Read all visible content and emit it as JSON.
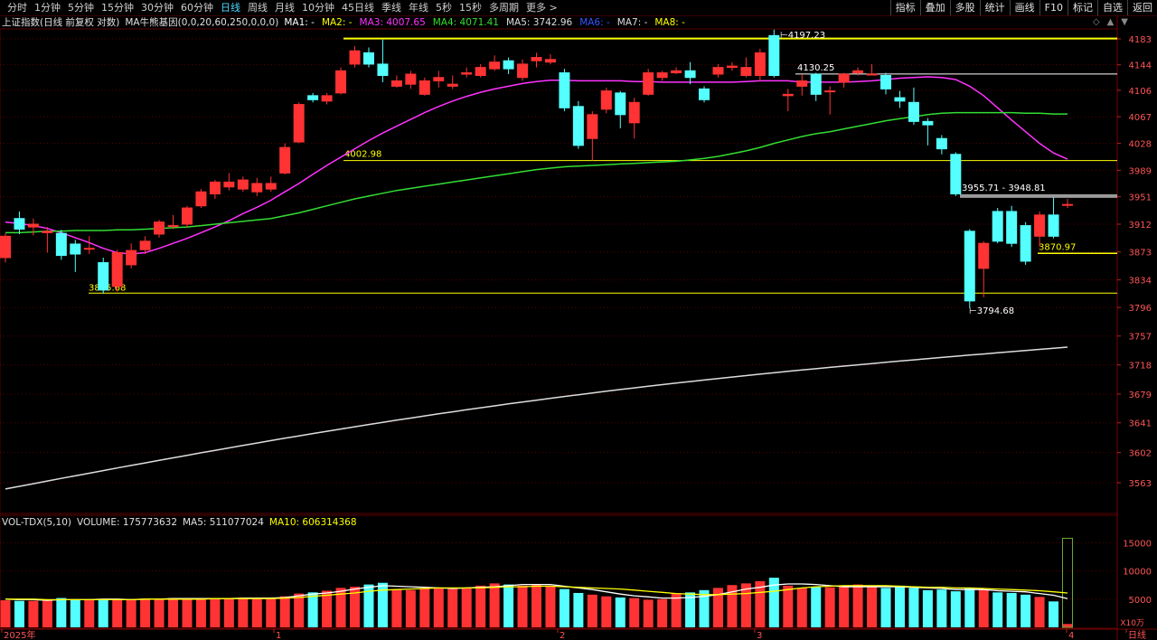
{
  "toolbar": {
    "periods": [
      "分时",
      "1分钟",
      "5分钟",
      "15分钟",
      "30分钟",
      "60分钟",
      "日线",
      "周线",
      "月线",
      "10分钟",
      "45日线",
      "季线",
      "年线",
      "5秒",
      "15秒",
      "多周期",
      "更多 >"
    ],
    "active_period": "日线",
    "right_tools": [
      "指标",
      "叠加",
      "多股",
      "统计",
      "画线",
      "F10",
      "标记",
      "自选",
      "返回"
    ]
  },
  "legend_main": {
    "name": "上证指数(日线 前复权 对数)",
    "indicator": "MA牛熊基因(0,0,20,60,250,0,0,0)",
    "items": [
      {
        "label": "MA1: -",
        "color": "#ffffff"
      },
      {
        "label": "MA2: -",
        "color": "#ffff00"
      },
      {
        "label": "MA3: 4007.65",
        "color": "#ff33ff"
      },
      {
        "label": "MA4: 4071.41",
        "color": "#33dd33"
      },
      {
        "label": "MA5: 3742.96",
        "color": "#dddddd"
      },
      {
        "label": "MA6: -",
        "color": "#3355ff"
      },
      {
        "label": "MA7: -",
        "color": "#dddddd"
      },
      {
        "label": "MA8: -",
        "color": "#ffff00"
      }
    ]
  },
  "legend_vol": {
    "name": "VOL-TDX(5,10)",
    "volume": "VOLUME: 175773632",
    "ma5": "MA5: 511077024",
    "ma10": "MA10: 606314368"
  },
  "window_controls": [
    "◇",
    "▲",
    "▼"
  ],
  "chart_data": {
    "type": "candlestick",
    "price_axis_ticks": [
      "4183",
      "4144",
      "4106",
      "4067",
      "4028",
      "3989",
      "3951",
      "3912",
      "3873",
      "3834",
      "3796",
      "3757",
      "3718",
      "3679",
      "3641",
      "3602",
      "3563"
    ],
    "volume_axis_ticks": [
      "15000",
      "10000",
      "5000"
    ],
    "volume_unit": "X10万",
    "x_labels": [
      "2025年",
      "1",
      "2",
      "3",
      "4",
      "日线"
    ],
    "annotations": {
      "high": "4197.23",
      "level_4130": "4130.25",
      "level_4002": "4002.98",
      "gap_zone": "3955.71 - 3948.81",
      "level_3870": "3870.97",
      "low_left": "3815.68",
      "low": "3794.68"
    },
    "candles": [
      {
        "o": 3865,
        "c": 3895,
        "h": 3899,
        "l": 3858
      },
      {
        "o": 3920,
        "c": 3905,
        "h": 3930,
        "l": 3898
      },
      {
        "o": 3908,
        "c": 3912,
        "h": 3920,
        "l": 3896
      },
      {
        "o": 3900,
        "c": 3902,
        "h": 3908,
        "l": 3872
      },
      {
        "o": 3899,
        "c": 3868,
        "h": 3904,
        "l": 3862
      },
      {
        "o": 3884,
        "c": 3870,
        "h": 3890,
        "l": 3845
      },
      {
        "o": 3878,
        "c": 3878,
        "h": 3895,
        "l": 3870
      },
      {
        "o": 3858,
        "c": 3820,
        "h": 3865,
        "l": 3815
      },
      {
        "o": 3825,
        "c": 3872,
        "h": 3876,
        "l": 3818
      },
      {
        "o": 3855,
        "c": 3875,
        "h": 3885,
        "l": 3850
      },
      {
        "o": 3876,
        "c": 3888,
        "h": 3895,
        "l": 3870
      },
      {
        "o": 3898,
        "c": 3915,
        "h": 3918,
        "l": 3893
      },
      {
        "o": 3910,
        "c": 3910,
        "h": 3925,
        "l": 3905
      },
      {
        "o": 3912,
        "c": 3935,
        "h": 3938,
        "l": 3908
      },
      {
        "o": 3938,
        "c": 3958,
        "h": 3962,
        "l": 3935
      },
      {
        "o": 3955,
        "c": 3972,
        "h": 3975,
        "l": 3948
      },
      {
        "o": 3965,
        "c": 3972,
        "h": 3985,
        "l": 3960
      },
      {
        "o": 3962,
        "c": 3975,
        "h": 3980,
        "l": 3958
      },
      {
        "o": 3958,
        "c": 3970,
        "h": 3978,
        "l": 3952
      },
      {
        "o": 3962,
        "c": 3970,
        "h": 3980,
        "l": 3958
      },
      {
        "o": 3985,
        "c": 4022,
        "h": 4028,
        "l": 3983
      },
      {
        "o": 4030,
        "c": 4085,
        "h": 4088,
        "l": 4028
      },
      {
        "o": 4098,
        "c": 4092,
        "h": 4102,
        "l": 4088
      },
      {
        "o": 4090,
        "c": 4098,
        "h": 4102,
        "l": 4085
      },
      {
        "o": 4102,
        "c": 4135,
        "h": 4140,
        "l": 4100
      },
      {
        "o": 4145,
        "c": 4165,
        "h": 4172,
        "l": 4140
      },
      {
        "o": 4162,
        "c": 4145,
        "h": 4170,
        "l": 4140
      },
      {
        "o": 4145,
        "c": 4128,
        "h": 4182,
        "l": 4118
      },
      {
        "o": 4112,
        "c": 4120,
        "h": 4128,
        "l": 4110
      },
      {
        "o": 4115,
        "c": 4130,
        "h": 4135,
        "l": 4108
      },
      {
        "o": 4100,
        "c": 4120,
        "h": 4125,
        "l": 4098
      },
      {
        "o": 4120,
        "c": 4125,
        "h": 4135,
        "l": 4110
      },
      {
        "o": 4112,
        "c": 4115,
        "h": 4128,
        "l": 4108
      },
      {
        "o": 4130,
        "c": 4132,
        "h": 4140,
        "l": 4125
      },
      {
        "o": 4128,
        "c": 4140,
        "h": 4145,
        "l": 4125
      },
      {
        "o": 4138,
        "c": 4148,
        "h": 4158,
        "l": 4135
      },
      {
        "o": 4150,
        "c": 4138,
        "h": 4155,
        "l": 4130
      },
      {
        "o": 4125,
        "c": 4145,
        "h": 4152,
        "l": 4120
      },
      {
        "o": 4150,
        "c": 4155,
        "h": 4162,
        "l": 4140
      },
      {
        "o": 4148,
        "c": 4152,
        "h": 4160,
        "l": 4145
      },
      {
        "o": 4132,
        "c": 4080,
        "h": 4138,
        "l": 4075
      },
      {
        "o": 4082,
        "c": 4025,
        "h": 4090,
        "l": 4020
      },
      {
        "o": 4035,
        "c": 4070,
        "h": 4075,
        "l": 4003
      },
      {
        "o": 4078,
        "c": 4105,
        "h": 4110,
        "l": 4072
      },
      {
        "o": 4102,
        "c": 4070,
        "h": 4105,
        "l": 4050
      },
      {
        "o": 4058,
        "c": 4088,
        "h": 4095,
        "l": 4035
      },
      {
        "o": 4100,
        "c": 4132,
        "h": 4138,
        "l": 4098
      },
      {
        "o": 4125,
        "c": 4132,
        "h": 4135,
        "l": 4120
      },
      {
        "o": 4132,
        "c": 4135,
        "h": 4140,
        "l": 4130
      },
      {
        "o": 4135,
        "c": 4125,
        "h": 4148,
        "l": 4115
      },
      {
        "o": 4108,
        "c": 4092,
        "h": 4112,
        "l": 4088
      },
      {
        "o": 4130,
        "c": 4140,
        "h": 4145,
        "l": 4125
      },
      {
        "o": 4140,
        "c": 4142,
        "h": 4148,
        "l": 4135
      },
      {
        "o": 4128,
        "c": 4140,
        "h": 4155,
        "l": 4125
      },
      {
        "o": 4128,
        "c": 4162,
        "h": 4168,
        "l": 4120
      },
      {
        "o": 4188,
        "c": 4128,
        "h": 4197,
        "l": 4125
      },
      {
        "o": 4098,
        "c": 4100,
        "h": 4108,
        "l": 4075
      },
      {
        "o": 4112,
        "c": 4120,
        "h": 4130,
        "l": 4098
      },
      {
        "o": 4130,
        "c": 4100,
        "h": 4132,
        "l": 4090
      },
      {
        "o": 4105,
        "c": 4105,
        "h": 4112,
        "l": 4070
      },
      {
        "o": 4118,
        "c": 4130,
        "h": 4132,
        "l": 4110
      },
      {
        "o": 4132,
        "c": 4135,
        "h": 4140,
        "l": 4128
      },
      {
        "o": 4130,
        "c": 4130,
        "h": 4145,
        "l": 4128
      },
      {
        "o": 4128,
        "c": 4108,
        "h": 4132,
        "l": 4100
      },
      {
        "o": 4095,
        "c": 4090,
        "h": 4105,
        "l": 4080
      },
      {
        "o": 4088,
        "c": 4060,
        "h": 4110,
        "l": 4055
      },
      {
        "o": 4060,
        "c": 4055,
        "h": 4065,
        "l": 4025
      },
      {
        "o": 4035,
        "c": 4020,
        "h": 4040,
        "l": 4012
      },
      {
        "o": 4012,
        "c": 3955,
        "h": 4015,
        "l": 3952
      },
      {
        "o": 3902,
        "c": 3805,
        "h": 3905,
        "l": 3795
      },
      {
        "o": 3850,
        "c": 3885,
        "h": 3888,
        "l": 3810
      },
      {
        "o": 3930,
        "c": 3888,
        "h": 3935,
        "l": 3885
      },
      {
        "o": 3930,
        "c": 3885,
        "h": 3938,
        "l": 3880
      },
      {
        "o": 3910,
        "c": 3860,
        "h": 3915,
        "l": 3855
      },
      {
        "o": 3895,
        "c": 3925,
        "h": 3930,
        "l": 3880
      },
      {
        "o": 3925,
        "c": 3895,
        "h": 3950,
        "l": 3892
      },
      {
        "o": 3940,
        "c": 3940,
        "h": 3948,
        "l": 3935
      }
    ],
    "ma20": [
      3915,
      3913,
      3910,
      3906,
      3900,
      3893,
      3886,
      3878,
      3872,
      3870,
      3872,
      3878,
      3885,
      3892,
      3900,
      3908,
      3917,
      3927,
      3936,
      3946,
      3958,
      3970,
      3983,
      3996,
      4008,
      4020,
      4032,
      4043,
      4053,
      4063,
      4073,
      4082,
      4090,
      4097,
      4103,
      4108,
      4112,
      4116,
      4119,
      4121,
      4121,
      4120,
      4120,
      4120,
      4120,
      4119,
      4119,
      4118,
      4118,
      4118,
      4118,
      4118,
      4118,
      4119,
      4120,
      4120,
      4120,
      4118,
      4118,
      4118,
      4118,
      4119,
      4120,
      4122,
      4124,
      4125,
      4126,
      4125,
      4122,
      4112,
      4098,
      4080,
      4062,
      4045,
      4028,
      4014,
      4005
    ],
    "ma60": [
      3900,
      3900,
      3901,
      3902,
      3902,
      3903,
      3903,
      3903,
      3904,
      3904,
      3905,
      3906,
      3907,
      3908,
      3910,
      3912,
      3914,
      3916,
      3918,
      3920,
      3924,
      3928,
      3933,
      3938,
      3943,
      3948,
      3952,
      3956,
      3960,
      3963,
      3966,
      3969,
      3972,
      3975,
      3978,
      3981,
      3984,
      3987,
      3990,
      3992,
      3994,
      3995,
      3996,
      3997,
      3998,
      3999,
      4000,
      4001,
      4002,
      4004,
      4006,
      4009,
      4013,
      4017,
      4022,
      4028,
      4033,
      4038,
      4042,
      4045,
      4049,
      4053,
      4057,
      4061,
      4064,
      4067,
      4070,
      4072,
      4073,
      4073,
      4073,
      4073,
      4073,
      4072,
      4072,
      4071,
      4071
    ],
    "ma250_start": 3555,
    "ma250_end": 3742,
    "volume": [
      48,
      47,
      47,
      49,
      52,
      50,
      50,
      49,
      50,
      49,
      50,
      51,
      52,
      51,
      50,
      51,
      52,
      52,
      51,
      51,
      55,
      60,
      62,
      65,
      70,
      72,
      76,
      79,
      67,
      66,
      69,
      70,
      68,
      70,
      74,
      78,
      76,
      74,
      77,
      74,
      68,
      61,
      58,
      55,
      53,
      52,
      49,
      50,
      60,
      62,
      66,
      70,
      75,
      78,
      82,
      88,
      74,
      70,
      72,
      71,
      73,
      76,
      72,
      70,
      74,
      70,
      66,
      67,
      64,
      70,
      66,
      62,
      61,
      58,
      54,
      46,
      6
    ],
    "vol_ma5": [
      50,
      49,
      49,
      48,
      49,
      49,
      49,
      50,
      50,
      49,
      50,
      50,
      51,
      51,
      51,
      51,
      51,
      52,
      52,
      52,
      53,
      56,
      59,
      61,
      64,
      68,
      71,
      74,
      73,
      72,
      71,
      70,
      69,
      70,
      71,
      72,
      74,
      76,
      76,
      76,
      73,
      70,
      67,
      63,
      59,
      56,
      54,
      52,
      52,
      53,
      55,
      58,
      63,
      68,
      71,
      75,
      77,
      77,
      76,
      74,
      72,
      72,
      72,
      72,
      72,
      71,
      70,
      69,
      67,
      67,
      67,
      65,
      64,
      63,
      60,
      57,
      51
    ],
    "vol_ma10": [
      50,
      50,
      50,
      49,
      49,
      49,
      49,
      49,
      49,
      49,
      50,
      50,
      50,
      50,
      50,
      51,
      51,
      51,
      51,
      51,
      52,
      53,
      55,
      57,
      59,
      61,
      64,
      66,
      67,
      68,
      69,
      70,
      70,
      70,
      70,
      71,
      72,
      72,
      73,
      73,
      72,
      71,
      70,
      69,
      68,
      66,
      64,
      62,
      60,
      59,
      58,
      58,
      59,
      60,
      62,
      64,
      67,
      70,
      72,
      73,
      74,
      74,
      74,
      74,
      73,
      72,
      71,
      71,
      70,
      70,
      69,
      68,
      67,
      66,
      65,
      63,
      61
    ]
  }
}
